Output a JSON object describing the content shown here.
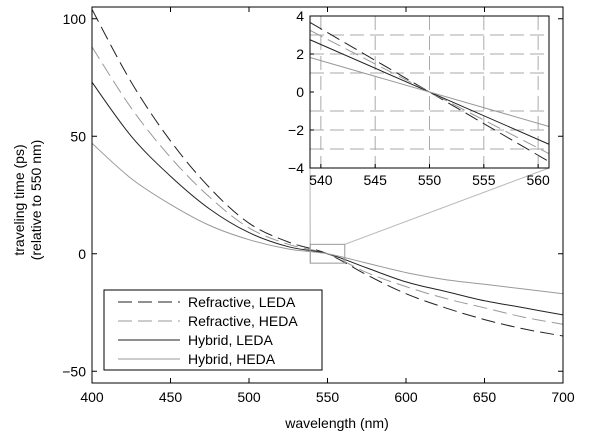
{
  "chart_data": {
    "type": "line",
    "xlabel": "wavelength (nm)",
    "ylabel_lines": [
      "traveling time (ps)",
      "(relative to 550 nm)"
    ],
    "xlim": [
      400,
      700
    ],
    "ylim": [
      -55,
      105
    ],
    "x_ticks": [
      400,
      450,
      500,
      550,
      600,
      650,
      700
    ],
    "y_ticks": [
      -50,
      0,
      50,
      100
    ],
    "x_tick_labels": [
      "400",
      "450",
      "500",
      "550",
      "600",
      "650",
      "700"
    ],
    "y_tick_labels": [
      "−50",
      "0",
      "50",
      "100"
    ],
    "grid": false,
    "legend_position": "bottom-left",
    "series": [
      {
        "name": "Refractive, LEDA",
        "style": "dashed",
        "color": "#222222",
        "x": [
          400,
          425,
          450,
          475,
          500,
          525,
          550,
          575,
          600,
          625,
          650,
          675,
          700
        ],
        "y": [
          104,
          73,
          48,
          28,
          13,
          5,
          0,
          -9,
          -17,
          -23,
          -28,
          -32,
          -35
        ]
      },
      {
        "name": "Refractive, HEDA",
        "style": "dashed",
        "color": "#999999",
        "x": [
          400,
          425,
          450,
          475,
          500,
          525,
          550,
          575,
          600,
          625,
          650,
          675,
          700
        ],
        "y": [
          88,
          62,
          41,
          24,
          11,
          4,
          0,
          -8,
          -14,
          -19,
          -23,
          -27,
          -30
        ]
      },
      {
        "name": "Hybrid, LEDA",
        "style": "solid",
        "color": "#222222",
        "x": [
          400,
          425,
          450,
          475,
          500,
          525,
          550,
          575,
          600,
          625,
          650,
          675,
          700
        ],
        "y": [
          73,
          50,
          33,
          19,
          9,
          3,
          0,
          -6,
          -12,
          -16,
          -20,
          -23,
          -26
        ]
      },
      {
        "name": "Hybrid, HEDA",
        "style": "solid",
        "color": "#999999",
        "x": [
          400,
          425,
          450,
          475,
          500,
          525,
          550,
          575,
          600,
          625,
          650,
          675,
          700
        ],
        "y": [
          47,
          32,
          21,
          12,
          6,
          2,
          0,
          -4,
          -8,
          -11,
          -13,
          -15,
          -17
        ]
      }
    ],
    "inset": {
      "xlim": [
        539,
        561
      ],
      "ylim": [
        -4,
        4
      ],
      "x_ticks": [
        540,
        545,
        550,
        555,
        560
      ],
      "y_ticks": [
        -4,
        -2,
        0,
        2,
        4
      ],
      "x_tick_labels": [
        "540",
        "545",
        "550",
        "555",
        "560"
      ],
      "y_tick_labels": [
        "−4",
        "−2",
        "0",
        "2",
        "4"
      ],
      "grid": true,
      "zoom_region": {
        "x": [
          539,
          561
        ],
        "y": [
          -4,
          4
        ]
      },
      "series_slopes": [
        -0.333,
        -0.295,
        -0.25,
        -0.165
      ]
    }
  }
}
